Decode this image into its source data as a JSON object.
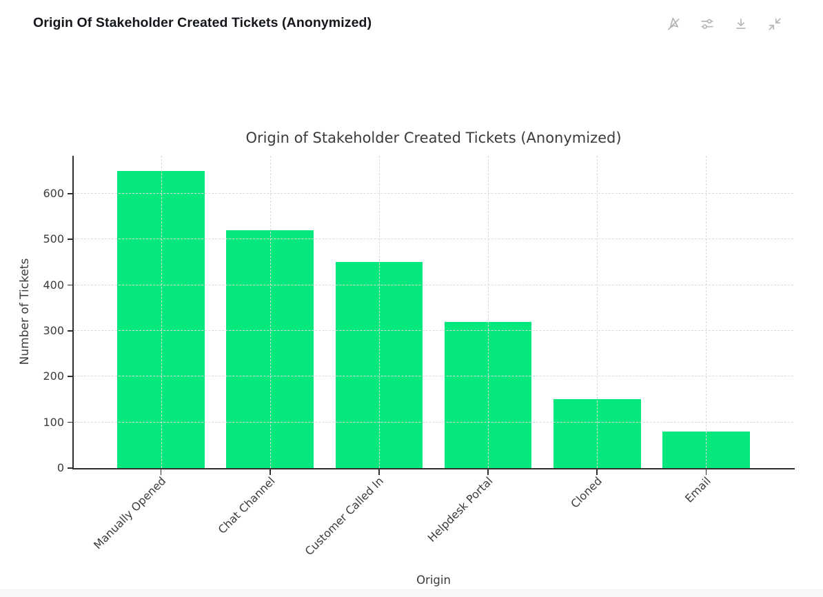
{
  "header": {
    "title": "Origin Of Stakeholder Created Tickets (Anonymized)"
  },
  "toolbar": {
    "buttons": [
      {
        "name": "disable-interactivity",
        "icon": "pointer-off-icon"
      },
      {
        "name": "settings",
        "icon": "sliders-icon"
      },
      {
        "name": "download",
        "icon": "download-icon"
      },
      {
        "name": "collapse",
        "icon": "collapse-icon"
      }
    ]
  },
  "chart_data": {
    "type": "bar",
    "title": "Origin of Stakeholder Created Tickets (Anonymized)",
    "categories": [
      "Manually Opened",
      "Chat Channel",
      "Customer Called In",
      "Helpdesk Portal",
      "Cloned",
      "Email"
    ],
    "values": [
      650,
      520,
      450,
      320,
      150,
      80
    ],
    "xlabel": "Origin",
    "ylabel": "Number of Tickets",
    "ylim": [
      0,
      682.5
    ],
    "yticks": [
      0,
      100,
      200,
      300,
      400,
      500,
      600
    ],
    "xtick_rotation_deg": 45,
    "grid": true,
    "grid_style": "dashed",
    "legend": "none",
    "bar_color": "#05E87E"
  },
  "colors": {
    "bar": "#05E87E",
    "grid": "#dadada",
    "spine": "#2e2e2e",
    "chart_text": "#3b3b3b",
    "header_text": "#14171c",
    "toolbar_icon": "#b4b4b4",
    "bottom_strip": "#f8f8f8",
    "background": "#ffffff"
  }
}
